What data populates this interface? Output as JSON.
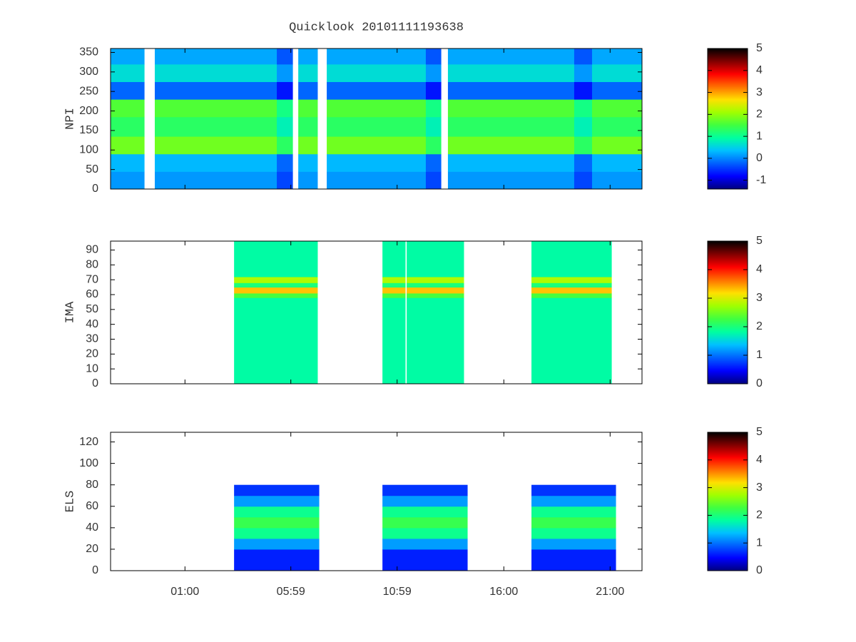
{
  "chart_data": [
    {
      "type": "heatmap",
      "title": "Quicklook 20101111193638",
      "ylabel": "NPI",
      "xlim": [
        -2.5,
        22.5
      ],
      "ylim": [
        0,
        360
      ],
      "yticks": [
        0,
        50,
        100,
        150,
        200,
        250,
        300,
        350
      ],
      "clim": [
        -1.4,
        5
      ],
      "cticks": [
        -1,
        0,
        1,
        2,
        3,
        4,
        5
      ],
      "colormap": [
        "#00007f",
        "#0000ff",
        "#0060ff",
        "#00c0ff",
        "#00ffa0",
        "#40ff40",
        "#a0ff00",
        "#ffe000",
        "#ff7000",
        "#ff0000",
        "#800000",
        "#000000"
      ],
      "x": [
        -2.5,
        -0.92,
        -0.42,
        5.32,
        6.06,
        6.33,
        7.23,
        7.67,
        12.33,
        13.04,
        13.37,
        19.31,
        20.15,
        22.5
      ],
      "y": [
        0,
        45,
        90,
        135,
        185,
        230,
        275,
        320,
        360
      ],
      "z": [
        [
          0.1,
          null,
          0.1,
          -0.4,
          null,
          0.1,
          null,
          0.1,
          -0.4,
          null,
          0.1,
          -0.4,
          0.1
        ],
        [
          0.3,
          null,
          0.3,
          -0.2,
          null,
          0.3,
          null,
          0.3,
          -0.2,
          null,
          0.3,
          -0.2,
          0.3
        ],
        [
          1.8,
          null,
          1.8,
          1.3,
          null,
          1.8,
          null,
          1.8,
          1.3,
          null,
          1.8,
          1.3,
          1.8
        ],
        [
          1.3,
          null,
          1.3,
          0.8,
          null,
          1.3,
          null,
          1.3,
          0.8,
          null,
          1.3,
          0.8,
          1.3
        ],
        [
          1.6,
          null,
          1.6,
          1.1,
          null,
          1.6,
          null,
          1.6,
          1.1,
          null,
          1.6,
          1.1,
          1.6
        ],
        [
          -0.2,
          null,
          -0.2,
          -0.7,
          null,
          -0.2,
          null,
          -0.2,
          -0.7,
          null,
          -0.2,
          -0.7,
          -0.2
        ],
        [
          0.6,
          null,
          0.6,
          0.1,
          null,
          0.6,
          null,
          0.6,
          0.1,
          null,
          0.6,
          0.1,
          0.6
        ],
        [
          0.2,
          null,
          0.2,
          -0.3,
          null,
          0.2,
          null,
          0.2,
          -0.3,
          null,
          0.2,
          -0.3,
          0.2
        ]
      ]
    },
    {
      "type": "heatmap",
      "ylabel": "IMA",
      "xlim": [
        -2.5,
        22.5
      ],
      "ylim": [
        0,
        96
      ],
      "yticks": [
        0,
        10,
        20,
        30,
        40,
        50,
        60,
        70,
        80,
        90
      ],
      "clim": [
        0,
        5
      ],
      "cticks": [
        0,
        1,
        2,
        3,
        4,
        5
      ],
      "colormap": [
        "#00007f",
        "#0000ff",
        "#0060ff",
        "#00c0ff",
        "#00ffa0",
        "#40ff40",
        "#a0ff00",
        "#ffe000",
        "#ff7000",
        "#ff0000",
        "#800000",
        "#000000"
      ],
      "x": [
        -2.5,
        3.31,
        7.23,
        10.29,
        11.36,
        11.43,
        14.11,
        17.3,
        21.06,
        22.5
      ],
      "y": [
        0,
        58,
        61,
        65,
        68,
        72,
        96
      ],
      "z": [
        [
          null,
          1.8,
          null,
          1.8,
          null,
          1.8,
          null,
          1.8,
          null
        ],
        [
          null,
          2.3,
          null,
          2.3,
          null,
          2.3,
          null,
          2.3,
          null
        ],
        [
          null,
          3.3,
          null,
          3.3,
          null,
          3.3,
          null,
          3.3,
          null
        ],
        [
          null,
          2.0,
          null,
          2.0,
          null,
          2.0,
          null,
          2.0,
          null
        ],
        [
          null,
          2.8,
          null,
          2.8,
          null,
          2.8,
          null,
          2.8,
          null
        ],
        [
          null,
          1.8,
          null,
          1.8,
          null,
          1.8,
          null,
          1.8,
          null
        ]
      ]
    },
    {
      "type": "heatmap",
      "ylabel": "ELS",
      "xlim": [
        -2.5,
        22.5
      ],
      "ylim": [
        0,
        129
      ],
      "yticks": [
        0,
        20,
        40,
        60,
        80,
        100,
        120
      ],
      "xticks": [
        {
          "value": 1,
          "label": "01:00"
        },
        {
          "value": 5.98,
          "label": "05:59"
        },
        {
          "value": 10.98,
          "label": "10:59"
        },
        {
          "value": 16,
          "label": "16:00"
        },
        {
          "value": 21,
          "label": "21:00"
        }
      ],
      "clim": [
        0,
        5
      ],
      "cticks": [
        0,
        1,
        2,
        3,
        4,
        5
      ],
      "colormap": [
        "#00007f",
        "#0000ff",
        "#0060ff",
        "#00c0ff",
        "#00ffa0",
        "#40ff40",
        "#a0ff00",
        "#ffe000",
        "#ff7000",
        "#ff0000",
        "#800000",
        "#000000"
      ],
      "x": [
        -2.5,
        3.31,
        7.3,
        10.29,
        14.28,
        17.3,
        21.26,
        22.5
      ],
      "y": [
        0,
        20,
        30,
        40,
        50,
        60,
        70,
        80
      ],
      "z": [
        [
          null,
          0.6,
          null,
          0.6,
          null,
          0.6,
          null
        ],
        [
          null,
          1.2,
          null,
          1.2,
          null,
          1.2,
          null
        ],
        [
          null,
          1.9,
          null,
          1.9,
          null,
          1.9,
          null
        ],
        [
          null,
          2.2,
          null,
          2.2,
          null,
          2.2,
          null
        ],
        [
          null,
          1.9,
          null,
          1.9,
          null,
          1.9,
          null
        ],
        [
          null,
          1.2,
          null,
          1.2,
          null,
          1.2,
          null
        ],
        [
          null,
          0.7,
          null,
          0.7,
          null,
          0.7,
          null
        ]
      ]
    }
  ]
}
